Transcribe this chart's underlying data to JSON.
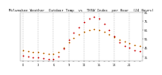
{
  "title": "Milwaukee Weather  Outdoor Temp  vs  THSW Index  per Hour  (24 Hours)",
  "hours": [
    0,
    1,
    2,
    3,
    4,
    5,
    6,
    7,
    8,
    9,
    10,
    11,
    12,
    13,
    14,
    15,
    16,
    17,
    18,
    19,
    20,
    21,
    22,
    23
  ],
  "temp": [
    42,
    41,
    40,
    40,
    39,
    38,
    38,
    40,
    45,
    51,
    56,
    60,
    63,
    65,
    66,
    65,
    63,
    60,
    57,
    54,
    52,
    50,
    48,
    47
  ],
  "thsw": [
    36,
    35,
    34,
    34,
    33,
    32,
    32,
    35,
    44,
    54,
    62,
    68,
    74,
    78,
    80,
    78,
    72,
    65,
    58,
    51,
    47,
    45,
    42,
    41
  ],
  "temp_color": "#ff8800",
  "thsw_color": "#cc0000",
  "black_color": "#000000",
  "bg_color": "#ffffff",
  "grid_color": "#999999",
  "ylim_min": 30,
  "ylim_max": 85,
  "ytick_values": [
    35,
    45,
    55,
    65,
    75,
    85
  ],
  "ytick_labels": [
    "35",
    "45",
    "55",
    "65",
    "75",
    "85"
  ],
  "title_fontsize": 2.8,
  "tick_fontsize": 2.5
}
